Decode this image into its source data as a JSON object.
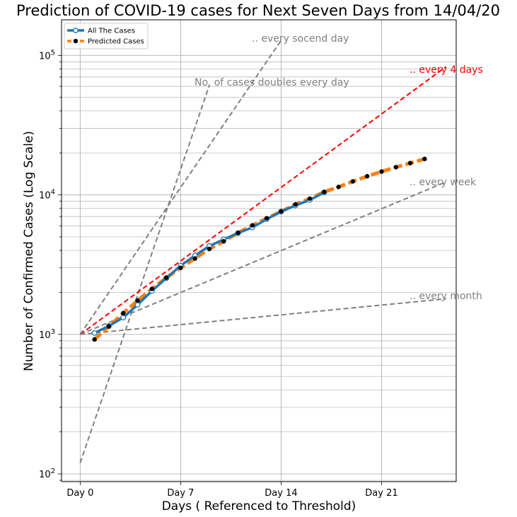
{
  "chart_data": {
    "type": "line",
    "title": "Prediction of COVID-19 cases for Next Seven Days from 14/04/20",
    "xlabel": "Days ( Referenced to Threshold)",
    "ylabel": "Number of Confirmed Cases (Log Scale)",
    "y_scale": "log",
    "xlim": [
      -1.3,
      26.2
    ],
    "ylim": [
      88,
      180000
    ],
    "x_ticks": [
      0,
      7,
      14,
      21
    ],
    "x_tick_labels": [
      "Day 0",
      "Day 7",
      "Day 14",
      "Day 21"
    ],
    "y_ticks": [
      100,
      1000,
      10000,
      100000
    ],
    "y_tick_labels": [
      "10^2",
      "10^3",
      "10^4",
      "10^5"
    ],
    "grid": true,
    "legend_position": "top-left",
    "series": [
      {
        "name": "All The Cases",
        "color": "#1f77b4",
        "marker": "open-circle",
        "x": [
          1,
          2,
          3,
          4,
          5,
          6,
          7,
          8,
          9,
          10,
          11,
          12,
          13,
          14,
          15,
          16,
          17
        ],
        "y": [
          1024,
          1150,
          1320,
          1630,
          2050,
          2530,
          3110,
          3680,
          4300,
          4800,
          5320,
          5850,
          6700,
          7600,
          8400,
          9200,
          10400
        ]
      },
      {
        "name": "Predicted Cases",
        "color": "#ff7f0e",
        "marker": "black-dot",
        "x": [
          1,
          2,
          3,
          4,
          5,
          6,
          7,
          8,
          9,
          10,
          11,
          12,
          13,
          14,
          15,
          16,
          17,
          18,
          19,
          20,
          21,
          22,
          23,
          24
        ],
        "y": [
          920,
          1140,
          1420,
          1750,
          2120,
          2550,
          3000,
          3500,
          4100,
          4650,
          5350,
          6050,
          6800,
          7600,
          8550,
          9400,
          10500,
          11400,
          12500,
          13600,
          14700,
          15800,
          16900,
          18100
        ]
      }
    ],
    "reference_lines": [
      {
        "label": "No. of cases doubles every day",
        "color": "#808080",
        "style": "dashed",
        "x": [
          0,
          9
        ],
        "y": [
          120,
          61000
        ]
      },
      {
        "label": ".. every socend day",
        "color": "#808080",
        "style": "dashed",
        "x": [
          0,
          14
        ],
        "y": [
          1000,
          128000
        ]
      },
      {
        "label": ".. every 4 days",
        "color": "#ff0000",
        "style": "dashed",
        "x": [
          0,
          25.5
        ],
        "y": [
          1000,
          83000
        ]
      },
      {
        "label": ".. every week",
        "color": "#808080",
        "style": "dashed",
        "x": [
          0,
          25.5
        ],
        "y": [
          1000,
          12400
        ]
      },
      {
        "label": ".. every month",
        "color": "#808080",
        "style": "dashed",
        "x": [
          0,
          25.5
        ],
        "y": [
          1000,
          1800
        ]
      }
    ]
  }
}
